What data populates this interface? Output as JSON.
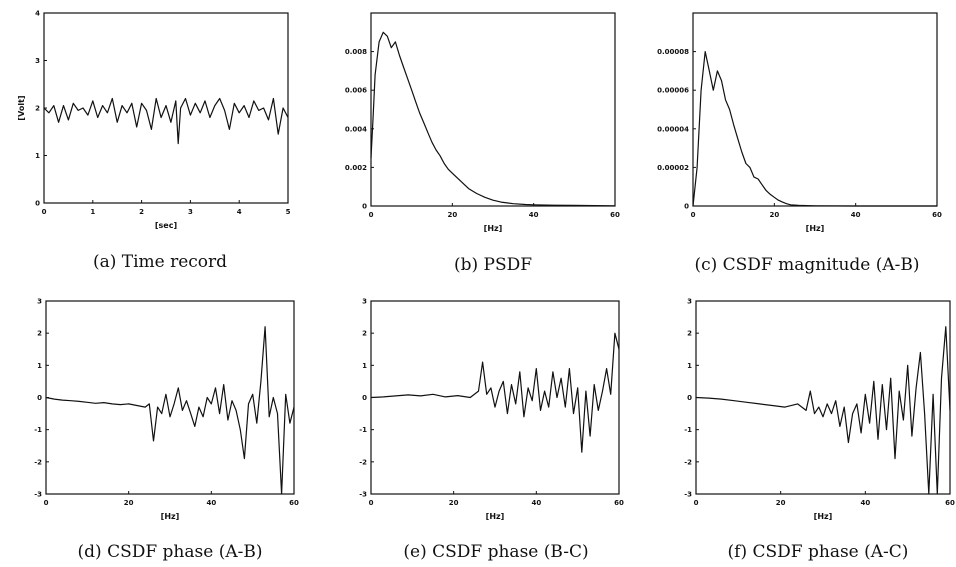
{
  "chart_data": [
    {
      "id": "a",
      "type": "line",
      "caption": "(a)  Time record",
      "xlabel": "[sec]",
      "ylabel": "[Volt]",
      "xlim": [
        0,
        5
      ],
      "ylim": [
        0,
        4
      ],
      "xticks": [
        "0",
        "1",
        "2",
        "3",
        "4",
        "5"
      ],
      "yticks": [
        "0",
        "1",
        "2",
        "3",
        "4"
      ],
      "series": [
        {
          "x": [
            0,
            0.1,
            0.2,
            0.3,
            0.4,
            0.5,
            0.6,
            0.7,
            0.8,
            0.9,
            1.0,
            1.1,
            1.2,
            1.3,
            1.4,
            1.5,
            1.6,
            1.7,
            1.8,
            1.9,
            2.0,
            2.1,
            2.2,
            2.3,
            2.4,
            2.5,
            2.6,
            2.7,
            2.75,
            2.8,
            2.9,
            3.0,
            3.1,
            3.2,
            3.3,
            3.4,
            3.5,
            3.6,
            3.7,
            3.8,
            3.9,
            4.0,
            4.1,
            4.2,
            4.3,
            4.4,
            4.5,
            4.6,
            4.7,
            4.8,
            4.9,
            5.0
          ],
          "values": [
            2.0,
            1.9,
            2.05,
            1.7,
            2.05,
            1.75,
            2.1,
            1.95,
            2.0,
            1.85,
            2.15,
            1.8,
            2.05,
            1.9,
            2.2,
            1.7,
            2.05,
            1.9,
            2.1,
            1.6,
            2.1,
            1.95,
            1.55,
            2.2,
            1.8,
            2.05,
            1.7,
            2.15,
            1.25,
            2.0,
            2.2,
            1.85,
            2.1,
            1.9,
            2.15,
            1.8,
            2.05,
            2.2,
            1.95,
            1.55,
            2.1,
            1.9,
            2.05,
            1.8,
            2.15,
            1.95,
            2.0,
            1.75,
            2.2,
            1.45,
            2.0,
            1.8
          ]
        }
      ]
    },
    {
      "id": "b",
      "type": "line",
      "caption": "(b)  PSDF",
      "xlabel": "[Hz]",
      "ylabel": "",
      "xlim": [
        0,
        60
      ],
      "ylim": [
        0,
        0.01
      ],
      "xticks": [
        "0",
        "20",
        "40",
        "60"
      ],
      "yticks": [
        "0",
        "0.002",
        "0.004",
        "0.006",
        "0.008"
      ],
      "series": [
        {
          "x": [
            0,
            0.5,
            1,
            2,
            3,
            4,
            5,
            6,
            7,
            8,
            9,
            10,
            11,
            12,
            13,
            14,
            15,
            16,
            17,
            18,
            19,
            20,
            22,
            24,
            26,
            28,
            30,
            32,
            35,
            38,
            40,
            45,
            50,
            55,
            60
          ],
          "values": [
            0.0025,
            0.0045,
            0.0068,
            0.0085,
            0.009,
            0.0088,
            0.0082,
            0.0085,
            0.0078,
            0.0072,
            0.0066,
            0.006,
            0.0054,
            0.0048,
            0.0043,
            0.0038,
            0.0033,
            0.0029,
            0.0026,
            0.0022,
            0.0019,
            0.0017,
            0.0013,
            0.0009,
            0.00065,
            0.00045,
            0.0003,
            0.0002,
            0.00012,
            8e-05,
            6e-05,
            4e-05,
            3e-05,
            2e-05,
            1e-05
          ]
        }
      ]
    },
    {
      "id": "c",
      "type": "line",
      "caption": "(c)  CSDF magnitude (A-B)",
      "xlabel": "[Hz]",
      "ylabel": "",
      "xlim": [
        0,
        60
      ],
      "ylim": [
        0,
        0.0001
      ],
      "xticks": [
        "0",
        "20",
        "40",
        "60"
      ],
      "yticks": [
        "0",
        "0.00002",
        "0.00004",
        "0.00006",
        "0.00008"
      ],
      "series": [
        {
          "x": [
            0,
            1,
            2,
            3,
            4,
            5,
            6,
            7,
            8,
            9,
            10,
            11,
            12,
            13,
            14,
            15,
            16,
            17,
            18,
            19,
            20,
            21,
            22,
            23,
            24,
            26,
            30,
            40,
            50,
            60
          ],
          "values": [
            0.0,
            2e-05,
            6e-05,
            8e-05,
            7e-05,
            6e-05,
            7e-05,
            6.5e-05,
            5.5e-05,
            5e-05,
            4.2e-05,
            3.5e-05,
            2.8e-05,
            2.2e-05,
            2e-05,
            1.5e-05,
            1.4e-05,
            1.1e-05,
            8e-06,
            6e-06,
            4.5e-06,
            3e-06,
            2e-06,
            1.2e-06,
            6e-07,
            3e-07,
            1e-07,
            0.0,
            0.0,
            0.0
          ]
        }
      ]
    },
    {
      "id": "d",
      "type": "line",
      "caption": "(d)  CSDF phase (A-B)",
      "xlabel": "[Hz]",
      "ylabel": "",
      "xlim": [
        0,
        60
      ],
      "ylim": [
        -3,
        3
      ],
      "xticks": [
        "0",
        "20",
        "40",
        "60"
      ],
      "yticks": [
        "-3",
        "-2",
        "-1",
        "0",
        "1",
        "2",
        "3"
      ],
      "series": [
        {
          "x": [
            0,
            2,
            4,
            6,
            8,
            10,
            12,
            14,
            16,
            18,
            20,
            22,
            24,
            25,
            26,
            27,
            28,
            29,
            30,
            31,
            32,
            33,
            34,
            35,
            36,
            37,
            38,
            39,
            40,
            41,
            42,
            43,
            44,
            45,
            46,
            47,
            48,
            49,
            50,
            51,
            52,
            53,
            54,
            55,
            56,
            57,
            58,
            59,
            60
          ],
          "values": [
            0.0,
            -0.05,
            -0.08,
            -0.1,
            -0.12,
            -0.15,
            -0.18,
            -0.16,
            -0.2,
            -0.22,
            -0.2,
            -0.25,
            -0.3,
            -0.2,
            -1.35,
            -0.3,
            -0.5,
            0.1,
            -0.6,
            -0.2,
            0.3,
            -0.4,
            -0.1,
            -0.5,
            -0.9,
            -0.3,
            -0.6,
            0.0,
            -0.2,
            0.3,
            -0.5,
            0.4,
            -0.7,
            -0.1,
            -0.4,
            -1.0,
            -1.9,
            -0.2,
            0.1,
            -0.8,
            0.5,
            2.2,
            -0.6,
            0.0,
            -0.5,
            -3.0,
            0.1,
            -0.8,
            -0.3
          ]
        }
      ]
    },
    {
      "id": "e",
      "type": "line",
      "caption": "(e)  CSDF phase (B-C)",
      "xlabel": "[Hz]",
      "ylabel": "",
      "xlim": [
        0,
        60
      ],
      "ylim": [
        -3,
        3
      ],
      "xticks": [
        "0",
        "20",
        "40",
        "60"
      ],
      "yticks": [
        "-3",
        "-2",
        "-1",
        "0",
        "1",
        "2",
        "3"
      ],
      "series": [
        {
          "x": [
            0,
            3,
            6,
            9,
            12,
            15,
            18,
            21,
            24,
            26,
            27,
            28,
            29,
            30,
            31,
            32,
            33,
            34,
            35,
            36,
            37,
            38,
            39,
            40,
            41,
            42,
            43,
            44,
            45,
            46,
            47,
            48,
            49,
            50,
            51,
            52,
            53,
            54,
            55,
            56,
            57,
            58,
            59,
            60
          ],
          "values": [
            0.0,
            0.02,
            0.05,
            0.08,
            0.05,
            0.1,
            0.02,
            0.06,
            0.0,
            0.2,
            1.1,
            0.1,
            0.3,
            -0.3,
            0.2,
            0.5,
            -0.5,
            0.4,
            -0.2,
            0.8,
            -0.6,
            0.3,
            -0.1,
            0.9,
            -0.4,
            0.2,
            -0.3,
            0.8,
            0.0,
            0.6,
            -0.3,
            0.9,
            -0.5,
            0.3,
            -1.7,
            0.2,
            -1.2,
            0.4,
            -0.4,
            0.2,
            0.9,
            0.1,
            2.0,
            1.5
          ]
        }
      ]
    },
    {
      "id": "f",
      "type": "line",
      "caption": "(f)  CSDF phase (A-C)",
      "xlabel": "[Hz]",
      "ylabel": "",
      "xlim": [
        0,
        60
      ],
      "ylim": [
        -3,
        3
      ],
      "xticks": [
        "0",
        "20",
        "40",
        "60"
      ],
      "yticks": [
        "-3",
        "-2",
        "-1",
        "0",
        "1",
        "2",
        "3"
      ],
      "series": [
        {
          "x": [
            0,
            3,
            6,
            9,
            12,
            15,
            18,
            21,
            24,
            26,
            27,
            28,
            29,
            30,
            31,
            32,
            33,
            34,
            35,
            36,
            37,
            38,
            39,
            40,
            41,
            42,
            43,
            44,
            45,
            46,
            47,
            48,
            49,
            50,
            51,
            52,
            53,
            54,
            55,
            56,
            57,
            58,
            59,
            60
          ],
          "values": [
            0.0,
            -0.02,
            -0.05,
            -0.1,
            -0.15,
            -0.2,
            -0.25,
            -0.3,
            -0.2,
            -0.4,
            0.2,
            -0.5,
            -0.3,
            -0.6,
            -0.2,
            -0.5,
            -0.1,
            -0.9,
            -0.3,
            -1.4,
            -0.5,
            -0.2,
            -1.1,
            0.1,
            -0.8,
            0.5,
            -1.3,
            0.4,
            -1.0,
            0.6,
            -1.9,
            0.2,
            -0.7,
            1.0,
            -1.2,
            0.3,
            1.4,
            -0.5,
            -3.0,
            0.1,
            -3.0,
            0.6,
            2.2,
            -0.4
          ]
        }
      ]
    }
  ]
}
